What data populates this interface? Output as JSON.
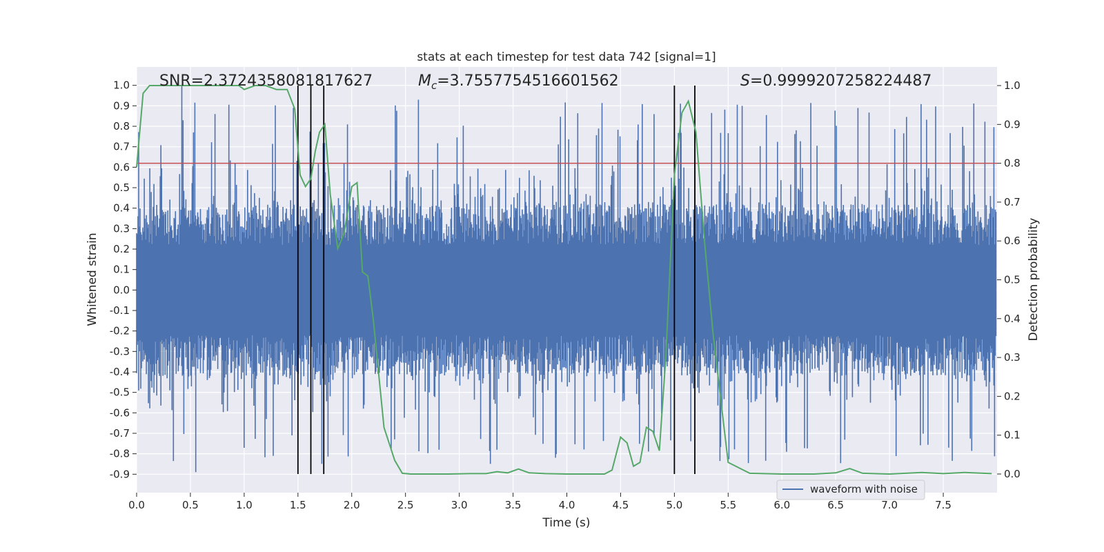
{
  "chart_data": {
    "type": "line",
    "title": "stats at each timestep for test data 742 [signal=1]",
    "xlabel": "Time (s)",
    "ylabel": "Whitened strain",
    "ylabel_right": "Detection probability",
    "xlim": [
      0,
      8.0
    ],
    "ylim": [
      -0.99,
      1.09
    ],
    "ylim_right": [
      -0.048,
      1.048
    ],
    "x_ticks": [
      "0.0",
      "0.5",
      "1.0",
      "1.5",
      "2.0",
      "2.5",
      "3.0",
      "3.5",
      "4.0",
      "4.5",
      "5.0",
      "5.5",
      "6.0",
      "6.5",
      "7.0",
      "7.5"
    ],
    "y_ticks": [
      "1.0",
      "0.9",
      "0.8",
      "0.7",
      "0.6",
      "0.5",
      "0.4",
      "0.3",
      "0.2",
      "0.1",
      "0.0",
      "-0.1",
      "-0.2",
      "-0.3",
      "-0.4",
      "-0.5",
      "-0.6",
      "-0.7",
      "-0.8",
      "-0.9"
    ],
    "y_ticks_right": [
      "1.0",
      "0.9",
      "0.8",
      "0.7",
      "0.6",
      "0.5",
      "0.4",
      "0.3",
      "0.2",
      "0.1",
      "0.0"
    ],
    "annotations": {
      "snr": "SNR=2.3724358081817627",
      "mc_symbol": "M",
      "mc_sub": "c",
      "mc_value": "=3.7557754516601562",
      "s_symbol": "S",
      "s_value": "=0.9999207258224487"
    },
    "threshold": {
      "value": 0.8,
      "axis": "right",
      "color": "#c44e52"
    },
    "vertical_lines": [
      1.5,
      1.62,
      1.74,
      5.0,
      5.19
    ],
    "series": [
      {
        "name": "waveform with noise",
        "axis": "left",
        "color": "#4c72b0",
        "style": "dense noise trace",
        "typical_range": [
          -0.4,
          0.4
        ],
        "extreme_range": [
          -0.89,
          1.0
        ]
      },
      {
        "axis": "right",
        "color": "#55a868",
        "x": [
          0.0,
          0.06,
          0.12,
          0.2,
          0.4,
          0.6,
          0.8,
          0.95,
          1.0,
          1.1,
          1.2,
          1.3,
          1.4,
          1.47,
          1.52,
          1.57,
          1.62,
          1.66,
          1.7,
          1.75,
          1.8,
          1.87,
          1.93,
          2.0,
          2.05,
          2.1,
          2.15,
          2.2,
          2.3,
          2.4,
          2.47,
          2.55,
          2.7,
          2.9,
          3.1,
          3.25,
          3.35,
          3.45,
          3.55,
          3.65,
          3.8,
          4.0,
          4.2,
          4.35,
          4.42,
          4.5,
          4.56,
          4.62,
          4.68,
          4.74,
          4.8,
          4.86,
          4.92,
          5.0,
          5.07,
          5.13,
          5.2,
          5.28,
          5.36,
          5.44,
          5.5,
          5.7,
          6.0,
          6.3,
          6.5,
          6.63,
          6.75,
          7.0,
          7.3,
          7.5,
          7.7,
          7.95
        ],
        "y": [
          0.79,
          0.98,
          1.0,
          1.0,
          1.0,
          1.0,
          1.0,
          1.0,
          0.99,
          1.0,
          1.0,
          0.99,
          0.99,
          0.94,
          0.77,
          0.74,
          0.76,
          0.83,
          0.88,
          0.9,
          0.72,
          0.58,
          0.62,
          0.74,
          0.75,
          0.52,
          0.51,
          0.4,
          0.12,
          0.035,
          0.002,
          0.0,
          0.0,
          0.0,
          0.001,
          0.001,
          0.006,
          0.003,
          0.013,
          0.003,
          0.001,
          0.0,
          0.0,
          0.0,
          0.01,
          0.095,
          0.08,
          0.02,
          0.03,
          0.12,
          0.11,
          0.06,
          0.3,
          0.77,
          0.93,
          0.96,
          0.88,
          0.6,
          0.36,
          0.17,
          0.03,
          0.002,
          0.0,
          0.0,
          0.003,
          0.014,
          0.002,
          0.0,
          0.004,
          0.001,
          0.004,
          0.001
        ]
      }
    ],
    "legend": {
      "placement": "lower-right",
      "entries": [
        "waveform with noise"
      ]
    },
    "grid": true,
    "background": "#eaeaf2",
    "threshold_line_color": "#c44e52",
    "marker_line_color": "#000000"
  }
}
